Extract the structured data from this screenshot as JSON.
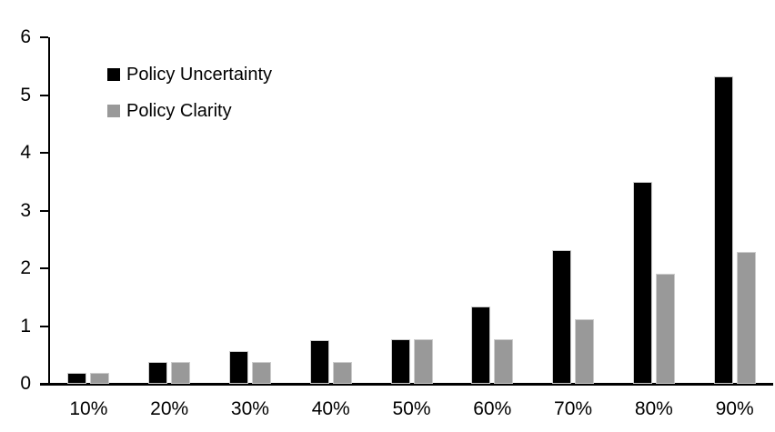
{
  "chart_data": {
    "type": "bar",
    "title": "",
    "xlabel": "",
    "ylabel": "",
    "categories": [
      "10%",
      "20%",
      "30%",
      "40%",
      "50%",
      "60%",
      "70%",
      "80%",
      "90%"
    ],
    "series": [
      {
        "name": "Policy Uncertainty",
        "color": "#000000",
        "values": [
          0.19,
          0.38,
          0.57,
          0.76,
          0.77,
          1.34,
          2.31,
          3.5,
          5.32
        ]
      },
      {
        "name": "Policy Clarity",
        "color": "#999999",
        "values": [
          0.19,
          0.38,
          0.38,
          0.38,
          0.77,
          0.77,
          1.12,
          1.9,
          2.29
        ]
      }
    ],
    "ylim": [
      0,
      6
    ],
    "yticks": [
      "0",
      "1",
      "2",
      "3",
      "4",
      "5",
      "6"
    ],
    "grid": false,
    "legend_position": "top-left"
  },
  "colors": {
    "background": "#ffffff",
    "axis": "#000000",
    "text": "#000000",
    "series_uncertainty": "#000000",
    "series_clarity": "#999999"
  }
}
